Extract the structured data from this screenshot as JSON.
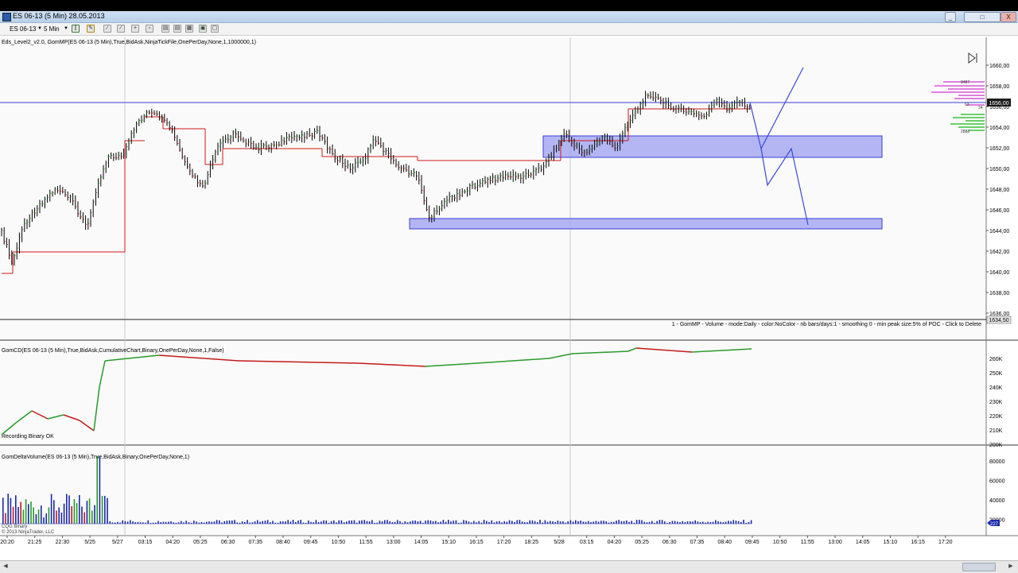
{
  "window": {
    "title": "ES 06-13 (5 Min)  28.05.2013",
    "buttons": [
      "_",
      "□",
      "X"
    ]
  },
  "toolbar": {
    "instrument": "ES 06-13",
    "interval": "5 Min"
  },
  "panels": {
    "price": {
      "indicator_label": "Eds_Level2_v2.0, GomMP(ES 06-13 (5 Min),True,BidAsk,NinjaTickFile,OnePerDay,None,1,1000000,1)",
      "footer_note": "1 - GomMP - Volume - mode:Daily - color:NoColor - nb bars/days:1 - smoothing 0 - min peak size:5% of POC - Click to Delete",
      "y_ticks": [
        "1660,00",
        "1658,00",
        "1656,00",
        "1654,00",
        "1652,00",
        "1650,00",
        "1648,00",
        "1646,00",
        "1644,00",
        "1642,00",
        "1640,00",
        "1638,00",
        "1636,00"
      ],
      "last_price": "1656,00",
      "last_low": "1634,50",
      "profile_labels": [
        "9487",
        "63",
        "24",
        "2888"
      ]
    },
    "cd": {
      "label": "GomCD(ES 06-13 (5 Min),True,BidAsk,CumulativeChart,Binary,OnePerDay,None,1,False)",
      "status": "Recording Binary OK",
      "y_ticks": [
        "260K",
        "250K",
        "240K",
        "230K",
        "220K",
        "210K",
        "200K"
      ]
    },
    "delta": {
      "label": "GomDeltaVolume(ES 06-13 (5 Min),True,BidAsk,Binary,OnePerDay,None,1)",
      "y_ticks": [
        "80000",
        "60000",
        "40000",
        "20000"
      ],
      "last_value": "227",
      "footer_lines": [
        "CQG Binary",
        "© 2013 NinjaTrader, LLC"
      ]
    }
  },
  "x_axis": {
    "labels": [
      "20:20",
      "21:25",
      "22:30",
      "5/25",
      "5/27",
      "03:15",
      "04:20",
      "05:25",
      "06:30",
      "07:35",
      "08:40",
      "09:45",
      "10:50",
      "11:55",
      "13:00",
      "14:05",
      "15:10",
      "16:15",
      "17:20",
      "18:25",
      "5/28",
      "03:15",
      "04:20",
      "05:25",
      "06:30",
      "07:35",
      "08:40",
      "09:45",
      "10:50",
      "11:55",
      "13:00",
      "14:05",
      "15:10",
      "16:15",
      "17:20"
    ]
  },
  "colors": {
    "up_bar": "#2a9a2a",
    "down_bar": "#c21b1b",
    "bar": "#000000",
    "zone_fill": "#9c9ff0",
    "zone_stroke": "#3a3fd6",
    "projection": "#3b49d6",
    "pivot": "#d01818",
    "delta_bar": "#1a2aa8"
  }
}
